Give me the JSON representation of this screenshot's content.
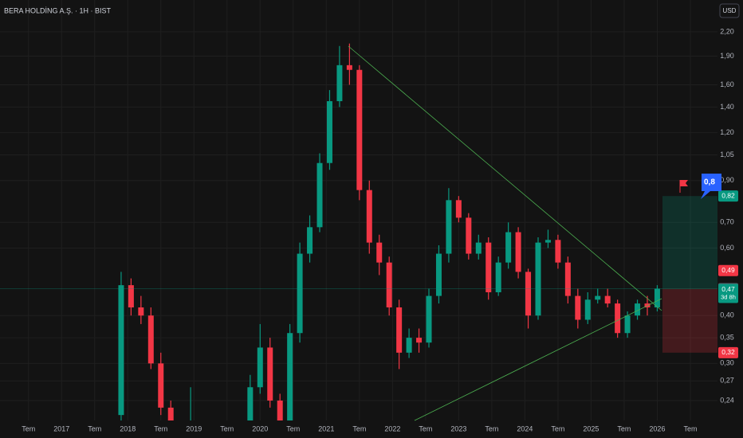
{
  "chart_data": {
    "type": "candlestick",
    "title": "BERA HOLDİNG A.Ş. · 1H · BIST",
    "currency": "USD",
    "log_scale": true,
    "grid": true,
    "up_color": "#089981",
    "down_color": "#f23645",
    "x": [
      2017.9,
      2018.05,
      2018.2,
      2018.35,
      2018.5,
      2018.65,
      2018.8,
      2018.95,
      2019.1,
      2019.25,
      2019.4,
      2019.55,
      2019.7,
      2019.85,
      2020,
      2020.15,
      2020.3,
      2020.45,
      2020.6,
      2020.75,
      2020.9,
      2021.05,
      2021.2,
      2021.35,
      2021.5,
      2021.65,
      2021.8,
      2021.95,
      2022.1,
      2022.25,
      2022.4,
      2022.55,
      2022.7,
      2022.85,
      2023,
      2023.15,
      2023.3,
      2023.45,
      2023.6,
      2023.75,
      2023.9,
      2024.05,
      2024.2,
      2024.35,
      2024.5,
      2024.65,
      2024.8,
      2024.95,
      2025.1,
      2025.25,
      2025.4,
      2025.55,
      2025.7,
      2025.85,
      2026
    ],
    "open": [
      0.22,
      0.48,
      0.42,
      0.4,
      0.3,
      0.23,
      0.2,
      0.19,
      0.2,
      0.19,
      0.18,
      0.19,
      0.19,
      0.2,
      0.26,
      0.33,
      0.24,
      0.21,
      0.36,
      0.58,
      0.68,
      1.0,
      1.45,
      1.8,
      1.75,
      0.85,
      0.62,
      0.55,
      0.42,
      0.32,
      0.35,
      0.34,
      0.45,
      0.58,
      0.8,
      0.72,
      0.58,
      0.62,
      0.46,
      0.55,
      0.66,
      0.52,
      0.4,
      0.62,
      0.63,
      0.55,
      0.45,
      0.39,
      0.44,
      0.45,
      0.43,
      0.36,
      0.4,
      0.43,
      0.42
    ],
    "high": [
      0.52,
      0.5,
      0.45,
      0.42,
      0.32,
      0.24,
      0.21,
      0.26,
      0.21,
      0.2,
      0.2,
      0.2,
      0.21,
      0.28,
      0.38,
      0.35,
      0.25,
      0.38,
      0.62,
      0.73,
      1.06,
      1.55,
      2.02,
      2.05,
      1.8,
      0.9,
      0.65,
      0.57,
      0.44,
      0.37,
      0.37,
      0.47,
      0.61,
      0.86,
      0.82,
      0.74,
      0.65,
      0.64,
      0.57,
      0.7,
      0.68,
      0.53,
      0.64,
      0.67,
      0.65,
      0.57,
      0.47,
      0.46,
      0.47,
      0.47,
      0.44,
      0.41,
      0.44,
      0.45,
      0.48
    ],
    "low": [
      0.21,
      0.4,
      0.38,
      0.29,
      0.22,
      0.19,
      0.18,
      0.18,
      0.18,
      0.17,
      0.17,
      0.18,
      0.18,
      0.19,
      0.25,
      0.23,
      0.2,
      0.2,
      0.34,
      0.55,
      0.66,
      0.96,
      1.4,
      1.6,
      0.8,
      0.58,
      0.51,
      0.4,
      0.29,
      0.31,
      0.32,
      0.33,
      0.43,
      0.55,
      0.7,
      0.56,
      0.56,
      0.44,
      0.45,
      0.53,
      0.5,
      0.37,
      0.39,
      0.6,
      0.53,
      0.43,
      0.37,
      0.38,
      0.43,
      0.42,
      0.35,
      0.35,
      0.39,
      0.4,
      0.41
    ],
    "close": [
      0.48,
      0.42,
      0.4,
      0.3,
      0.23,
      0.2,
      0.19,
      0.2,
      0.19,
      0.18,
      0.19,
      0.19,
      0.2,
      0.26,
      0.33,
      0.24,
      0.21,
      0.36,
      0.58,
      0.68,
      1.0,
      1.45,
      1.8,
      1.75,
      0.85,
      0.62,
      0.55,
      0.42,
      0.32,
      0.35,
      0.34,
      0.45,
      0.58,
      0.8,
      0.72,
      0.58,
      0.62,
      0.46,
      0.55,
      0.66,
      0.52,
      0.4,
      0.62,
      0.63,
      0.55,
      0.45,
      0.39,
      0.44,
      0.45,
      0.43,
      0.36,
      0.4,
      0.43,
      0.42,
      0.47
    ],
    "xlim": [
      2016.07,
      2026.91
    ],
    "xticks": [
      {
        "value": 2016.5,
        "label": "Tem"
      },
      {
        "value": 2017,
        "label": "2017"
      },
      {
        "value": 2017.5,
        "label": "Tem"
      },
      {
        "value": 2018,
        "label": "2018"
      },
      {
        "value": 2018.5,
        "label": "Tem"
      },
      {
        "value": 2019,
        "label": "2019"
      },
      {
        "value": 2019.5,
        "label": "Tem"
      },
      {
        "value": 2020,
        "label": "2020"
      },
      {
        "value": 2020.5,
        "label": "Tem"
      },
      {
        "value": 2021,
        "label": "2021"
      },
      {
        "value": 2021.5,
        "label": "Tem"
      },
      {
        "value": 2022,
        "label": "2022"
      },
      {
        "value": 2022.5,
        "label": "Tem"
      },
      {
        "value": 2023,
        "label": "2023"
      },
      {
        "value": 2023.5,
        "label": "Tem"
      },
      {
        "value": 2024,
        "label": "2024"
      },
      {
        "value": 2024.5,
        "label": "Tem"
      },
      {
        "value": 2025,
        "label": "2025"
      },
      {
        "value": 2025.5,
        "label": "Tem"
      },
      {
        "value": 2026,
        "label": "2026"
      },
      {
        "value": 2026.5,
        "label": "Tem"
      }
    ],
    "ylim": [
      0.216,
      2.6
    ],
    "yticks": [
      {
        "value": 2.2,
        "label": "2,20"
      },
      {
        "value": 1.9,
        "label": "1,90"
      },
      {
        "value": 1.6,
        "label": "1,60"
      },
      {
        "value": 1.4,
        "label": "1,40"
      },
      {
        "value": 1.2,
        "label": "1,20"
      },
      {
        "value": 1.05,
        "label": "1,05"
      },
      {
        "value": 0.9,
        "label": "0,90"
      },
      {
        "value": 0.7,
        "label": "0,70"
      },
      {
        "value": 0.6,
        "label": "0,60"
      },
      {
        "value": 0.4,
        "label": "0,40"
      },
      {
        "value": 0.35,
        "label": "0,35"
      },
      {
        "value": 0.3,
        "label": "0,30"
      },
      {
        "value": 0.27,
        "label": "0,27"
      },
      {
        "value": 0.24,
        "label": "0,24"
      }
    ],
    "position": {
      "target": {
        "value": 0.82,
        "label": "0,82"
      },
      "entry": {
        "value": 0.47,
        "label": "0,47"
      },
      "stop": {
        "value": 0.32,
        "label": "0,32"
      }
    },
    "countdown": "3d 8h",
    "price_labels": [
      {
        "value": 0.49,
        "label": "0,49",
        "color": "#f23645"
      },
      {
        "value": 0.47,
        "label": "0,47",
        "color": "#5d606b"
      }
    ],
    "callout": "0,8"
  }
}
